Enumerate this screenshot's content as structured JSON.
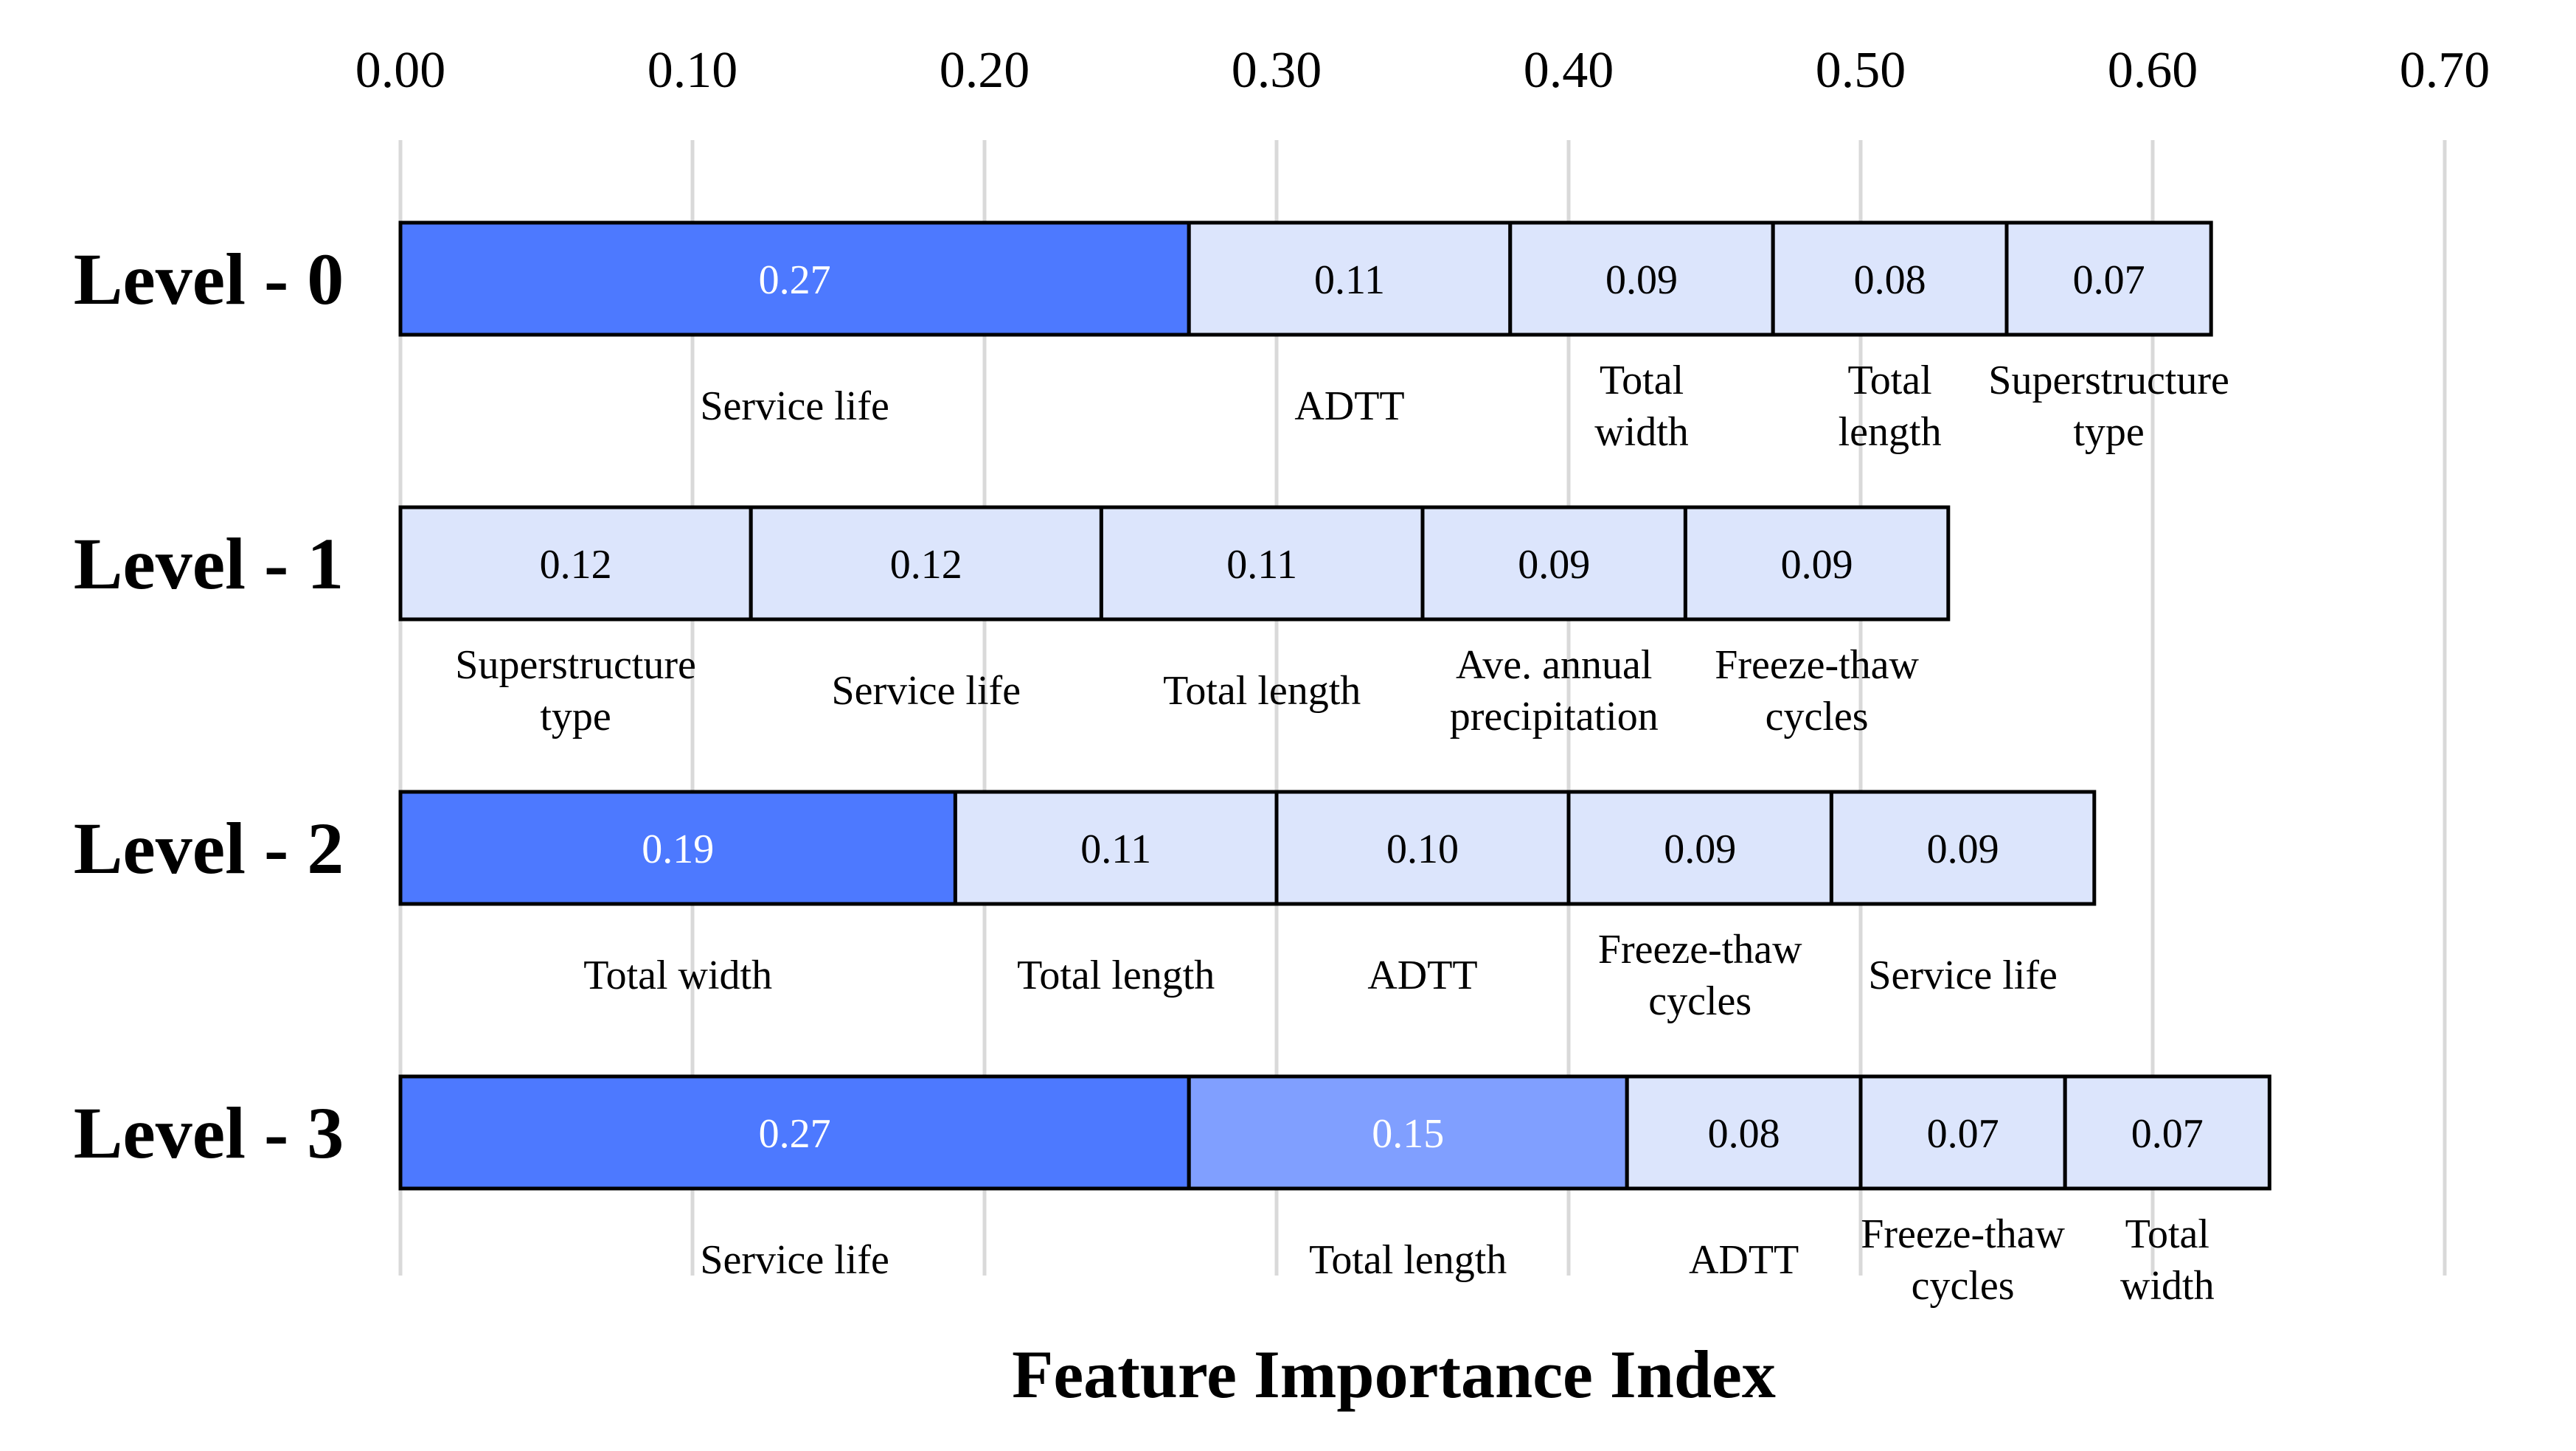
{
  "chart_data": {
    "type": "bar",
    "subtype": "stacked-horizontal",
    "xlabel": "Feature Importance Index",
    "xlim": [
      0,
      0.7
    ],
    "x_ticks": [
      "0.00",
      "0.10",
      "0.20",
      "0.30",
      "0.40",
      "0.50",
      "0.60",
      "0.70"
    ],
    "x_axis_position": "top",
    "grid": "vertical",
    "legend": "none",
    "colors": {
      "high": "#4d79ff",
      "medium": "#809fff",
      "low": "#dce5fc",
      "grid": "#d9d9d9",
      "border": "#000000"
    },
    "rows": [
      {
        "label": "Level - 0",
        "segments": [
          {
            "value": 0.27,
            "text": "0.27",
            "feature": [
              "Service life"
            ],
            "tier": "high"
          },
          {
            "value": 0.11,
            "text": "0.11",
            "feature": [
              "ADTT"
            ],
            "tier": "low"
          },
          {
            "value": 0.09,
            "text": "0.09",
            "feature": [
              "Total",
              "width"
            ],
            "tier": "low"
          },
          {
            "value": 0.08,
            "text": "0.08",
            "feature": [
              "Total",
              "length"
            ],
            "tier": "low"
          },
          {
            "value": 0.07,
            "text": "0.07",
            "feature": [
              "Superstructure",
              "type"
            ],
            "tier": "low"
          }
        ]
      },
      {
        "label": "Level - 1",
        "segments": [
          {
            "value": 0.12,
            "text": "0.12",
            "feature": [
              "Superstructure",
              "type"
            ],
            "tier": "low"
          },
          {
            "value": 0.12,
            "text": "0.12",
            "feature": [
              "Service life"
            ],
            "tier": "low"
          },
          {
            "value": 0.11,
            "text": "0.11",
            "feature": [
              "Total length"
            ],
            "tier": "low"
          },
          {
            "value": 0.09,
            "text": "0.09",
            "feature": [
              "Ave. annual",
              "precipitation"
            ],
            "tier": "low"
          },
          {
            "value": 0.09,
            "text": "0.09",
            "feature": [
              "Freeze-thaw",
              "cycles"
            ],
            "tier": "low"
          }
        ]
      },
      {
        "label": "Level - 2",
        "segments": [
          {
            "value": 0.19,
            "text": "0.19",
            "feature": [
              "Total width"
            ],
            "tier": "high"
          },
          {
            "value": 0.11,
            "text": "0.11",
            "feature": [
              "Total length"
            ],
            "tier": "low"
          },
          {
            "value": 0.1,
            "text": "0.10",
            "feature": [
              "ADTT"
            ],
            "tier": "low"
          },
          {
            "value": 0.09,
            "text": "0.09",
            "feature": [
              "Freeze-thaw",
              "cycles"
            ],
            "tier": "low"
          },
          {
            "value": 0.09,
            "text": "0.09",
            "feature": [
              "Service life"
            ],
            "tier": "low"
          }
        ]
      },
      {
        "label": "Level - 3",
        "segments": [
          {
            "value": 0.27,
            "text": "0.27",
            "feature": [
              "Service life"
            ],
            "tier": "high"
          },
          {
            "value": 0.15,
            "text": "0.15",
            "feature": [
              "Total length"
            ],
            "tier": "medium"
          },
          {
            "value": 0.08,
            "text": "0.08",
            "feature": [
              "ADTT"
            ],
            "tier": "low"
          },
          {
            "value": 0.07,
            "text": "0.07",
            "feature": [
              "Freeze-thaw",
              "cycles"
            ],
            "tier": "low"
          },
          {
            "value": 0.07,
            "text": "0.07",
            "feature": [
              "Total",
              "width"
            ],
            "tier": "low"
          }
        ]
      }
    ]
  }
}
